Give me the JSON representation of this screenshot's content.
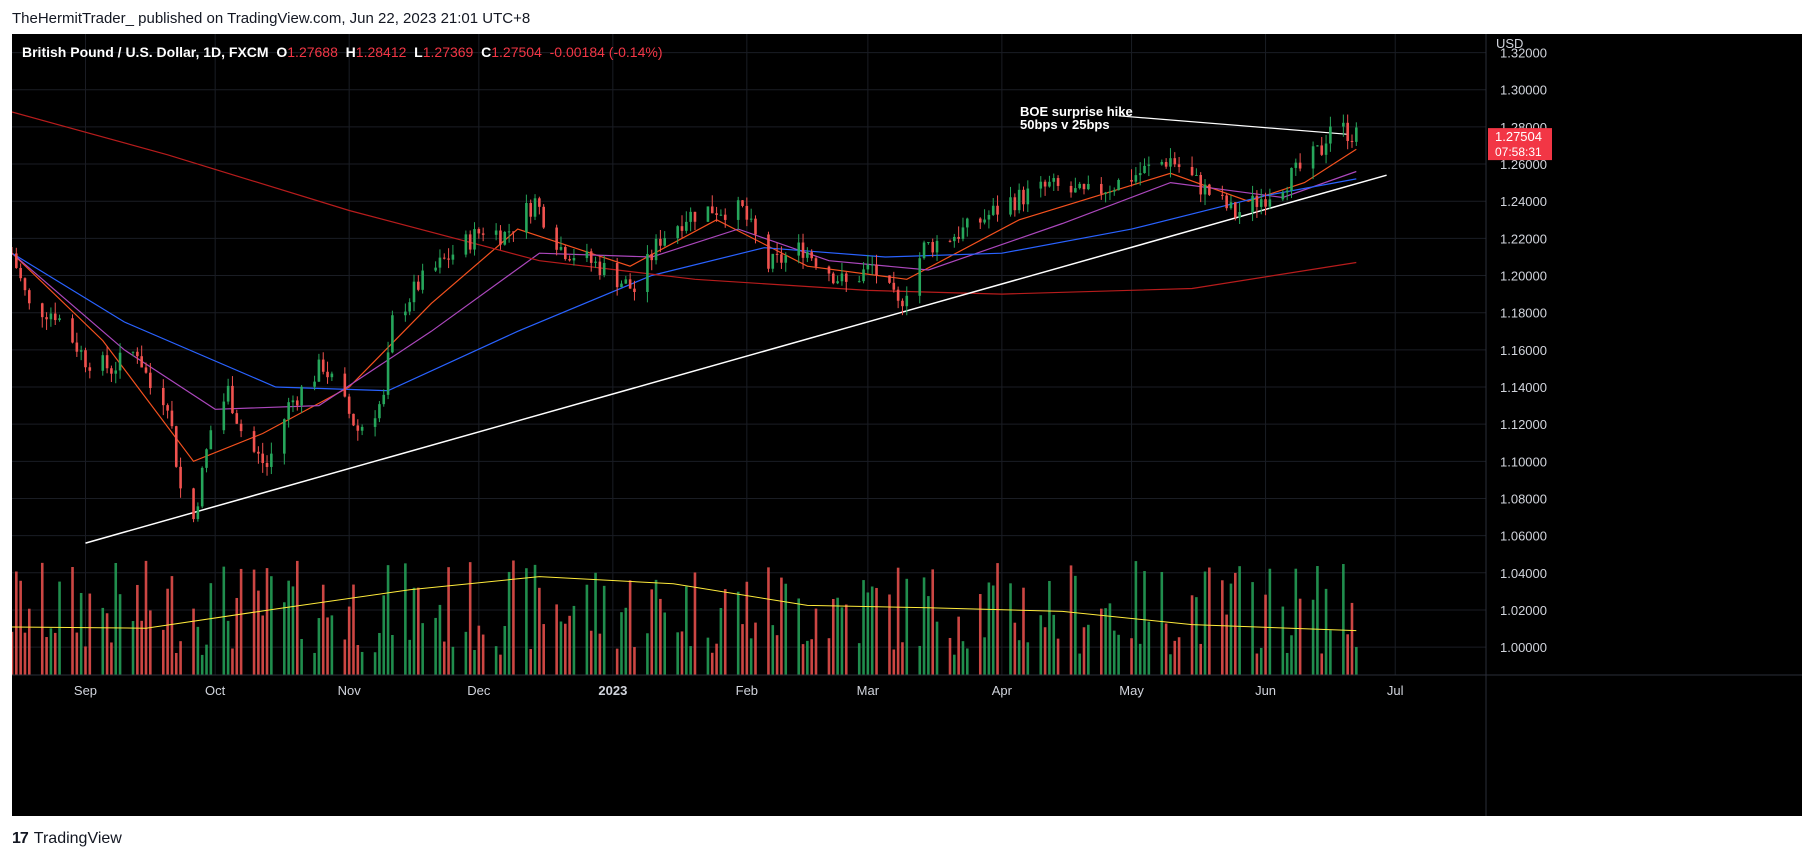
{
  "header": {
    "published_line": "TheHermitTrader_ published on TradingView.com, Jun 22, 2023 21:01 UTC+8"
  },
  "legend": {
    "symbol": "British Pound / U.S. Dollar, 1D, FXCM",
    "o_label": "O",
    "o_value": "1.27688",
    "h_label": "H",
    "h_value": "1.28412",
    "l_label": "L",
    "l_value": "1.27369",
    "c_label": "C",
    "c_value": "1.27504",
    "change": "-0.00184 (-0.14%)"
  },
  "price_badge": {
    "price": "1.27504",
    "countdown": "07:58:31"
  },
  "annotation": {
    "line1": "BOE surprise hike",
    "line2": "50bps v 25bps"
  },
  "footer": {
    "brand": "TradingView",
    "logo_text": "17"
  },
  "colors": {
    "background": "#000000",
    "up": "#26a65b",
    "down": "#f0524f",
    "ema_fast": "#f4511e",
    "ema_mid": "#ab47bc",
    "ema_slow": "#2962ff",
    "ema_long": "#b71c1c",
    "vol_ma": "#ffeb3b",
    "trendline": "#ffffff",
    "badge": "#f23645"
  },
  "chart_data": {
    "type": "candlestick",
    "currency": "USD",
    "ylim": [
      0.985,
      1.33
    ],
    "yticks": [
      1.0,
      1.02,
      1.04,
      1.06,
      1.08,
      1.1,
      1.12,
      1.14,
      1.16,
      1.18,
      1.2,
      1.22,
      1.24,
      1.26,
      1.28,
      1.3,
      1.32
    ],
    "ytick_labels": [
      "1.00000",
      "1.02000",
      "1.04000",
      "1.06000",
      "1.08000",
      "1.10000",
      "1.12000",
      "1.14000",
      "1.16000",
      "1.18000",
      "1.20000",
      "1.22000",
      "1.24000",
      "1.26000",
      "1.28000",
      "1.30000",
      "1.32000"
    ],
    "xticks": [
      {
        "label": "Sep",
        "date": "2022-09-01"
      },
      {
        "label": "Oct",
        "date": "2022-10-01"
      },
      {
        "label": "Nov",
        "date": "2022-11-01"
      },
      {
        "label": "Dec",
        "date": "2022-12-01"
      },
      {
        "label": "2023",
        "date": "2023-01-01"
      },
      {
        "label": "Feb",
        "date": "2023-02-01"
      },
      {
        "label": "Mar",
        "date": "2023-03-01"
      },
      {
        "label": "Apr",
        "date": "2023-04-01"
      },
      {
        "label": "May",
        "date": "2023-05-01"
      },
      {
        "label": "Jun",
        "date": "2023-06-01"
      },
      {
        "label": "Jul",
        "date": "2023-07-01"
      }
    ],
    "xlim": [
      "2022-08-15",
      "2023-07-22"
    ],
    "close_path": [
      {
        "date": "2022-08-15",
        "close": 1.212
      },
      {
        "date": "2022-08-19",
        "close": 1.183
      },
      {
        "date": "2022-08-25",
        "close": 1.18
      },
      {
        "date": "2022-09-01",
        "close": 1.155
      },
      {
        "date": "2022-09-07",
        "close": 1.15
      },
      {
        "date": "2022-09-13",
        "close": 1.16
      },
      {
        "date": "2022-09-16",
        "close": 1.14
      },
      {
        "date": "2022-09-20",
        "close": 1.133
      },
      {
        "date": "2022-09-23",
        "close": 1.085
      },
      {
        "date": "2022-09-26",
        "close": 1.069
      },
      {
        "date": "2022-09-30",
        "close": 1.117
      },
      {
        "date": "2022-10-04",
        "close": 1.138
      },
      {
        "date": "2022-10-08",
        "close": 1.11
      },
      {
        "date": "2022-10-13",
        "close": 1.097
      },
      {
        "date": "2022-10-18",
        "close": 1.13
      },
      {
        "date": "2022-10-26",
        "close": 1.152
      },
      {
        "date": "2022-11-03",
        "close": 1.117
      },
      {
        "date": "2022-11-09",
        "close": 1.133
      },
      {
        "date": "2022-11-11",
        "close": 1.175
      },
      {
        "date": "2022-11-17",
        "close": 1.195
      },
      {
        "date": "2022-11-24",
        "close": 1.21
      },
      {
        "date": "2022-12-02",
        "close": 1.225
      },
      {
        "date": "2022-12-07",
        "close": 1.222
      },
      {
        "date": "2022-12-14",
        "close": 1.24
      },
      {
        "date": "2022-12-20",
        "close": 1.215
      },
      {
        "date": "2022-12-29",
        "close": 1.205
      },
      {
        "date": "2023-01-06",
        "close": 1.192
      },
      {
        "date": "2023-01-12",
        "close": 1.22
      },
      {
        "date": "2023-01-18",
        "close": 1.232
      },
      {
        "date": "2023-01-24",
        "close": 1.236
      },
      {
        "date": "2023-01-31",
        "close": 1.235
      },
      {
        "date": "2023-02-06",
        "close": 1.205
      },
      {
        "date": "2023-02-14",
        "close": 1.215
      },
      {
        "date": "2023-02-24",
        "close": 1.195
      },
      {
        "date": "2023-03-02",
        "close": 1.205
      },
      {
        "date": "2023-03-08",
        "close": 1.183
      },
      {
        "date": "2023-03-14",
        "close": 1.215
      },
      {
        "date": "2023-03-24",
        "close": 1.225
      },
      {
        "date": "2023-04-03",
        "close": 1.24
      },
      {
        "date": "2023-04-12",
        "close": 1.248
      },
      {
        "date": "2023-04-20",
        "close": 1.243
      },
      {
        "date": "2023-04-28",
        "close": 1.25
      },
      {
        "date": "2023-05-10",
        "close": 1.263
      },
      {
        "date": "2023-05-17",
        "close": 1.248
      },
      {
        "date": "2023-05-25",
        "close": 1.233
      },
      {
        "date": "2023-06-01",
        "close": 1.243
      },
      {
        "date": "2023-06-08",
        "close": 1.255
      },
      {
        "date": "2023-06-14",
        "close": 1.268
      },
      {
        "date": "2023-06-16",
        "close": 1.282
      },
      {
        "date": "2023-06-22",
        "close": 1.275
      }
    ],
    "series": [
      {
        "kind": "ema_fast",
        "points": [
          [
            "2022-08-15",
            1.212
          ],
          [
            "2022-09-05",
            1.165
          ],
          [
            "2022-09-26",
            1.1
          ],
          [
            "2022-10-12",
            1.115
          ],
          [
            "2022-11-01",
            1.14
          ],
          [
            "2022-11-20",
            1.185
          ],
          [
            "2022-12-10",
            1.225
          ],
          [
            "2023-01-05",
            1.205
          ],
          [
            "2023-01-25",
            1.23
          ],
          [
            "2023-02-15",
            1.205
          ],
          [
            "2023-03-10",
            1.198
          ],
          [
            "2023-04-05",
            1.23
          ],
          [
            "2023-05-10",
            1.255
          ],
          [
            "2023-05-28",
            1.24
          ],
          [
            "2023-06-10",
            1.25
          ],
          [
            "2023-06-22",
            1.268
          ]
        ]
      },
      {
        "kind": "ema_mid",
        "points": [
          [
            "2022-08-15",
            1.212
          ],
          [
            "2022-09-10",
            1.16
          ],
          [
            "2022-10-01",
            1.128
          ],
          [
            "2022-10-25",
            1.13
          ],
          [
            "2022-11-20",
            1.17
          ],
          [
            "2022-12-15",
            1.212
          ],
          [
            "2023-01-10",
            1.21
          ],
          [
            "2023-01-30",
            1.225
          ],
          [
            "2023-02-20",
            1.208
          ],
          [
            "2023-03-15",
            1.203
          ],
          [
            "2023-04-15",
            1.228
          ],
          [
            "2023-05-10",
            1.25
          ],
          [
            "2023-06-05",
            1.242
          ],
          [
            "2023-06-22",
            1.256
          ]
        ]
      },
      {
        "kind": "ema_slow",
        "points": [
          [
            "2022-08-15",
            1.212
          ],
          [
            "2022-09-10",
            1.175
          ],
          [
            "2022-10-15",
            1.14
          ],
          [
            "2022-11-10",
            1.138
          ],
          [
            "2022-12-10",
            1.17
          ],
          [
            "2023-01-10",
            1.2
          ],
          [
            "2023-02-05",
            1.215
          ],
          [
            "2023-03-05",
            1.21
          ],
          [
            "2023-04-01",
            1.212
          ],
          [
            "2023-05-01",
            1.225
          ],
          [
            "2023-06-01",
            1.243
          ],
          [
            "2023-06-22",
            1.252
          ]
        ]
      },
      {
        "kind": "ema_long",
        "points": [
          [
            "2022-08-15",
            1.288
          ],
          [
            "2022-09-20",
            1.265
          ],
          [
            "2022-11-01",
            1.235
          ],
          [
            "2022-12-15",
            1.208
          ],
          [
            "2023-01-20",
            1.198
          ],
          [
            "2023-03-01",
            1.192
          ],
          [
            "2023-04-01",
            1.19
          ],
          [
            "2023-05-15",
            1.193
          ],
          [
            "2023-06-22",
            1.207
          ]
        ]
      },
      {
        "kind": "trendline",
        "points": [
          [
            "2022-09-01",
            1.056
          ],
          [
            "2023-06-29",
            1.254
          ]
        ]
      },
      {
        "kind": "annotation_line",
        "points": [
          [
            "2023-04-28",
            1.286
          ],
          [
            "2023-06-20",
            1.276
          ]
        ]
      }
    ],
    "volume_panel": {
      "ma": [
        [
          "2022-08-15",
          0.4
        ],
        [
          "2022-09-15",
          0.39
        ],
        [
          "2022-10-15",
          0.55
        ],
        [
          "2022-11-15",
          0.71
        ],
        [
          "2022-12-15",
          0.82
        ],
        [
          "2023-01-15",
          0.76
        ],
        [
          "2023-02-15",
          0.58
        ],
        [
          "2023-03-15",
          0.56
        ],
        [
          "2023-04-15",
          0.53
        ],
        [
          "2023-05-15",
          0.42
        ],
        [
          "2023-06-22",
          0.37
        ]
      ]
    }
  }
}
